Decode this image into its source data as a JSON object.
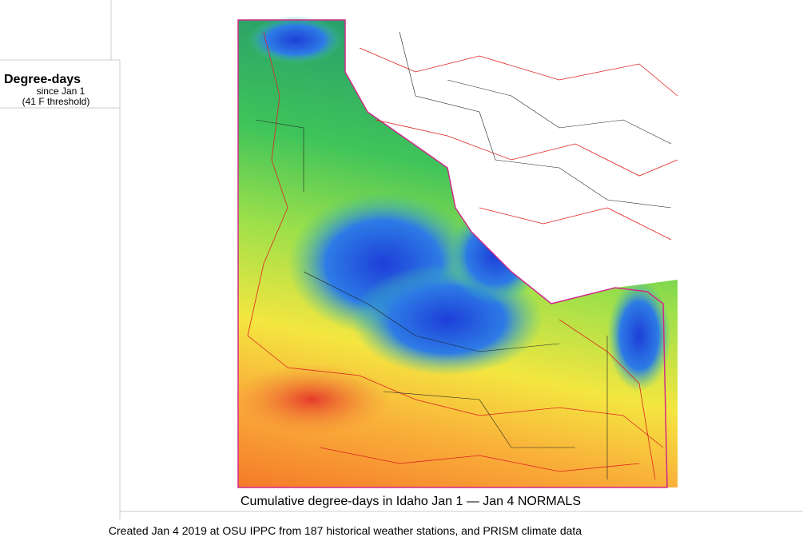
{
  "legend": {
    "title": "Degree-days",
    "subtitle": "since Jan 1",
    "threshold": "(41 F threshold)"
  },
  "map": {
    "caption": "Cumulative degree-days in Idaho  Jan 1 — Jan 4 NORMALS"
  },
  "footer": {
    "credit": "Created Jan 4 2019 at OSU IPPC from 187 historical weather stations, and PRISM climate data"
  }
}
